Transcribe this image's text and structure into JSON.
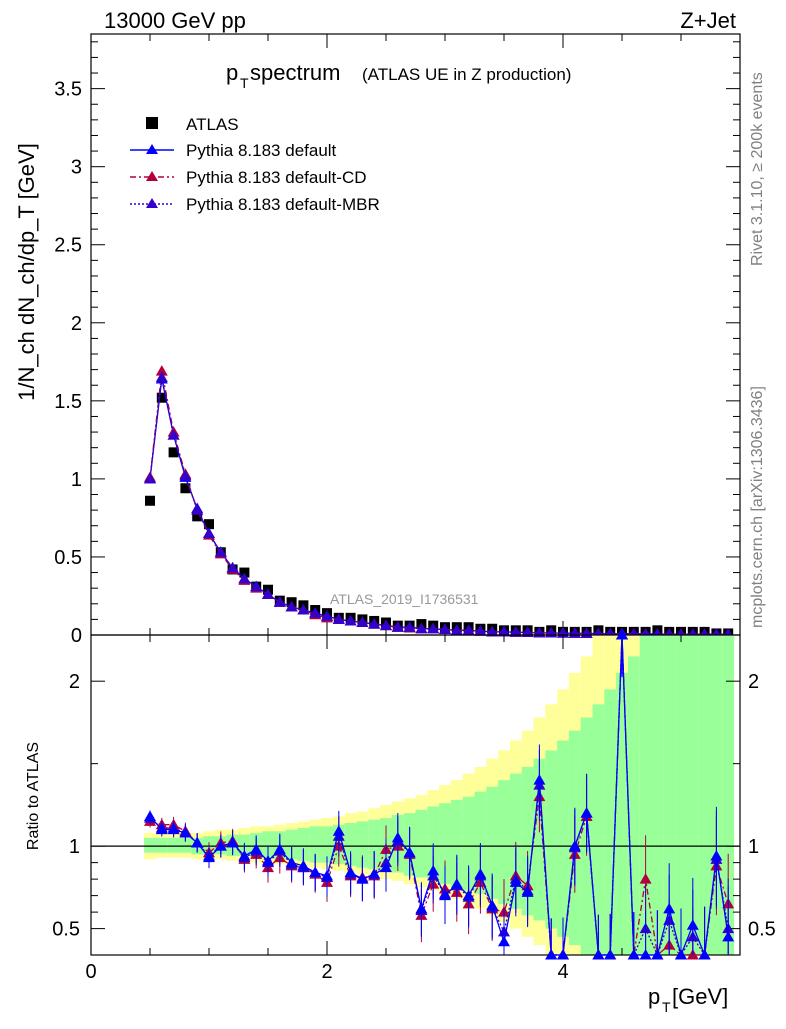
{
  "header": {
    "left": "13000 GeV pp",
    "right": "Z+Jet"
  },
  "side_text": {
    "rivet": "Rivet 3.1.10, ≥ 200k events",
    "mcplots": "mcplots.cern.ch [arXiv:1306.3436]"
  },
  "chart_data": [
    {
      "id": "main",
      "type": "scatter",
      "title_main": "p",
      "title_sub": "T",
      "title_word": " spectrum",
      "title_note": "(ATLAS UE in Z production)",
      "ylabel": "1/N_ch dN_ch/dp_T [GeV]",
      "xlabel": "",
      "xlim": [
        0,
        5.5
      ],
      "ylim": [
        0,
        3.85
      ],
      "yticks": [
        0,
        0.5,
        1,
        1.5,
        2,
        2.5,
        3,
        3.5
      ],
      "ytick_labels": [
        "0",
        "0.5",
        "1",
        "1.5",
        "2",
        "2.5",
        "3",
        "3.5"
      ],
      "watermark": "ATLAS_2019_I1736531",
      "colors": {
        "data": "#000000",
        "default": "#0000ff",
        "cd": "#b3003c",
        "mbr": "#3300cc"
      },
      "legend": [
        "ATLAS",
        "Pythia 8.183 default",
        "Pythia 8.183 default-CD",
        "Pythia 8.183 default-MBR"
      ],
      "x": [
        0.5,
        0.6,
        0.7,
        0.8,
        0.9,
        1.0,
        1.1,
        1.2,
        1.3,
        1.4,
        1.5,
        1.6,
        1.7,
        1.8,
        1.9,
        2.0,
        2.1,
        2.2,
        2.3,
        2.4,
        2.5,
        2.6,
        2.7,
        2.8,
        2.9,
        3.0,
        3.1,
        3.2,
        3.3,
        3.4,
        3.5,
        3.6,
        3.7,
        3.8,
        3.9,
        4.0,
        4.1,
        4.2,
        4.3,
        4.4,
        4.5,
        4.6,
        4.7,
        4.8,
        4.9,
        5.0,
        5.1,
        5.2,
        5.3,
        5.4
      ],
      "series": [
        {
          "name": "ATLAS",
          "marker": "square",
          "values": [
            0.86,
            1.52,
            1.17,
            0.94,
            0.76,
            0.71,
            0.53,
            0.42,
            0.4,
            0.31,
            0.29,
            0.22,
            0.21,
            0.19,
            0.16,
            0.14,
            0.11,
            0.11,
            0.1,
            0.09,
            0.08,
            0.06,
            0.06,
            0.07,
            0.06,
            0.05,
            0.05,
            0.05,
            0.04,
            0.04,
            0.03,
            0.03,
            0.03,
            0.02,
            0.03,
            0.02,
            0.02,
            0.02,
            0.03,
            0.02,
            0.02,
            0.02,
            0.02,
            0.03,
            0.02,
            0.02,
            0.02,
            0.02,
            0.01,
            0.01
          ]
        },
        {
          "name": "Pythia 8.183 default",
          "marker": "triangle",
          "values": [
            1.0,
            1.64,
            1.28,
            1.01,
            0.81,
            0.65,
            0.53,
            0.43,
            0.36,
            0.31,
            0.26,
            0.21,
            0.18,
            0.16,
            0.14,
            0.12,
            0.1,
            0.09,
            0.08,
            0.07,
            0.06,
            0.05,
            0.05,
            0.04,
            0.04,
            0.035,
            0.03,
            0.03,
            0.025,
            0.02,
            0.02,
            0.018,
            0.016,
            0.014,
            0.013,
            0.012,
            0.011,
            0.01,
            0.009,
            0.009,
            0.008,
            0.008,
            0.007,
            0.006,
            0.006,
            0.005,
            0.005,
            0.005,
            0.005,
            0.004
          ]
        },
        {
          "name": "Pythia 8.183 default-CD",
          "marker": "triangle",
          "values": [
            1.01,
            1.69,
            1.3,
            1.03,
            0.8,
            0.64,
            0.52,
            0.42,
            0.35,
            0.3,
            0.26,
            0.21,
            0.18,
            0.16,
            0.13,
            0.11,
            0.1,
            0.09,
            0.08,
            0.07,
            0.06,
            0.05,
            0.045,
            0.04,
            0.04,
            0.035,
            0.03,
            0.03,
            0.025,
            0.02,
            0.02,
            0.018,
            0.016,
            0.014,
            0.013,
            0.012,
            0.011,
            0.01,
            0.009,
            0.009,
            0.008,
            0.008,
            0.007,
            0.006,
            0.006,
            0.005,
            0.005,
            0.005,
            0.005,
            0.004
          ]
        },
        {
          "name": "Pythia 8.183 default-MBR",
          "marker": "triangle",
          "values": [
            1.0,
            1.65,
            1.28,
            1.02,
            0.8,
            0.65,
            0.53,
            0.43,
            0.36,
            0.31,
            0.26,
            0.21,
            0.18,
            0.16,
            0.14,
            0.12,
            0.1,
            0.09,
            0.08,
            0.07,
            0.06,
            0.05,
            0.05,
            0.04,
            0.04,
            0.035,
            0.03,
            0.03,
            0.025,
            0.02,
            0.02,
            0.018,
            0.016,
            0.014,
            0.013,
            0.012,
            0.011,
            0.01,
            0.009,
            0.009,
            0.008,
            0.008,
            0.007,
            0.006,
            0.006,
            0.005,
            0.005,
            0.005,
            0.005,
            0.004
          ]
        }
      ]
    },
    {
      "id": "ratio",
      "type": "scatter",
      "ylabel": "Ratio to ATLAS",
      "xlabel": "p_T [GeV]",
      "xlabel_main": "p",
      "xlabel_sub": "T",
      "xlabel_unit": " [GeV]",
      "xlim": [
        0,
        5.5
      ],
      "ylim": [
        0.34,
        2.28
      ],
      "xticks": [
        0,
        2,
        4
      ],
      "xtick_labels": [
        "0",
        "2",
        "4"
      ],
      "yticks": [
        0.5,
        1,
        2
      ],
      "ytick_labels": [
        "0.5",
        "1",
        "2"
      ],
      "x": [
        0.5,
        0.6,
        0.7,
        0.8,
        0.9,
        1.0,
        1.1,
        1.2,
        1.3,
        1.4,
        1.5,
        1.6,
        1.7,
        1.8,
        1.9,
        2.0,
        2.1,
        2.2,
        2.3,
        2.4,
        2.5,
        2.6,
        2.7,
        2.8,
        2.9,
        3.0,
        3.1,
        3.2,
        3.3,
        3.4,
        3.5,
        3.6,
        3.7,
        3.8,
        3.9,
        4.0,
        4.1,
        4.2,
        4.3,
        4.4,
        4.5,
        4.6,
        4.7,
        4.8,
        4.9,
        5.0,
        5.1,
        5.2,
        5.3,
        5.4
      ],
      "band_stat_sys": [
        [
          0.92,
          1.08
        ],
        [
          0.93,
          1.08
        ],
        [
          0.93,
          1.08
        ],
        [
          0.93,
          1.08
        ],
        [
          0.92,
          1.08
        ],
        [
          0.92,
          1.09
        ],
        [
          0.92,
          1.1
        ],
        [
          0.91,
          1.1
        ],
        [
          0.91,
          1.11
        ],
        [
          0.9,
          1.12
        ],
        [
          0.9,
          1.12
        ],
        [
          0.89,
          1.13
        ],
        [
          0.89,
          1.14
        ],
        [
          0.88,
          1.15
        ],
        [
          0.87,
          1.16
        ],
        [
          0.86,
          1.17
        ],
        [
          0.85,
          1.18
        ],
        [
          0.84,
          1.2
        ],
        [
          0.83,
          1.21
        ],
        [
          0.82,
          1.23
        ],
        [
          0.8,
          1.25
        ],
        [
          0.79,
          1.27
        ],
        [
          0.77,
          1.29
        ],
        [
          0.75,
          1.31
        ],
        [
          0.73,
          1.34
        ],
        [
          0.7,
          1.37
        ],
        [
          0.68,
          1.4
        ],
        [
          0.65,
          1.44
        ],
        [
          0.62,
          1.48
        ],
        [
          0.58,
          1.53
        ],
        [
          0.54,
          1.58
        ],
        [
          0.5,
          1.64
        ],
        [
          0.45,
          1.7
        ],
        [
          0.4,
          1.78
        ],
        [
          0.34,
          1.86
        ],
        [
          0.34,
          1.95
        ],
        [
          0.34,
          2.05
        ],
        [
          0.34,
          2.15
        ],
        [
          0.34,
          2.28
        ],
        [
          0.34,
          2.28
        ],
        [
          0.34,
          2.28
        ],
        [
          0.34,
          2.28
        ],
        [
          0.34,
          2.28
        ],
        [
          0.34,
          2.28
        ],
        [
          0.34,
          2.28
        ],
        [
          0.34,
          2.28
        ],
        [
          0.34,
          2.28
        ],
        [
          0.34,
          2.28
        ],
        [
          0.34,
          2.28
        ],
        [
          0.34,
          2.28
        ]
      ],
      "band_stat": [
        [
          0.96,
          1.05
        ],
        [
          0.96,
          1.05
        ],
        [
          0.96,
          1.05
        ],
        [
          0.96,
          1.05
        ],
        [
          0.95,
          1.05
        ],
        [
          0.95,
          1.06
        ],
        [
          0.95,
          1.06
        ],
        [
          0.94,
          1.07
        ],
        [
          0.94,
          1.07
        ],
        [
          0.93,
          1.08
        ],
        [
          0.93,
          1.09
        ],
        [
          0.92,
          1.09
        ],
        [
          0.92,
          1.1
        ],
        [
          0.91,
          1.11
        ],
        [
          0.9,
          1.12
        ],
        [
          0.9,
          1.12
        ],
        [
          0.89,
          1.13
        ],
        [
          0.88,
          1.14
        ],
        [
          0.87,
          1.15
        ],
        [
          0.86,
          1.16
        ],
        [
          0.85,
          1.17
        ],
        [
          0.84,
          1.19
        ],
        [
          0.82,
          1.2
        ],
        [
          0.81,
          1.22
        ],
        [
          0.79,
          1.24
        ],
        [
          0.77,
          1.26
        ],
        [
          0.75,
          1.28
        ],
        [
          0.73,
          1.3
        ],
        [
          0.71,
          1.33
        ],
        [
          0.68,
          1.36
        ],
        [
          0.65,
          1.4
        ],
        [
          0.62,
          1.44
        ],
        [
          0.58,
          1.48
        ],
        [
          0.55,
          1.53
        ],
        [
          0.5,
          1.58
        ],
        [
          0.45,
          1.64
        ],
        [
          0.4,
          1.7
        ],
        [
          0.34,
          1.78
        ],
        [
          0.34,
          1.86
        ],
        [
          0.34,
          1.95
        ],
        [
          0.34,
          2.05
        ],
        [
          0.34,
          2.15
        ],
        [
          0.34,
          2.28
        ],
        [
          0.34,
          2.28
        ],
        [
          0.34,
          2.28
        ],
        [
          0.34,
          2.28
        ],
        [
          0.34,
          2.28
        ],
        [
          0.34,
          2.28
        ],
        [
          0.34,
          2.28
        ],
        [
          0.34,
          2.28
        ]
      ],
      "series": [
        {
          "name": "Pythia 8.183 default",
          "values": [
            1.18,
            1.1,
            1.1,
            1.08,
            1.02,
            0.93,
            1.0,
            1.02,
            0.94,
            0.98,
            0.91,
            0.98,
            0.9,
            0.88,
            0.84,
            0.82,
            1.09,
            0.84,
            0.8,
            0.83,
            0.87,
            1.05,
            0.96,
            0.62,
            0.85,
            0.7,
            0.77,
            0.7,
            0.83,
            0.64,
            0.42,
            0.78,
            0.72,
            1.4,
            0.34,
            0.34,
            1.0,
            1.2,
            0.34,
            0.34,
            2.28,
            0.34,
            0.34,
            0.34,
            0.62,
            0.34,
            0.52,
            0.34,
            0.94,
            0.45
          ]
        },
        {
          "name": "Pythia 8.183 default-CD",
          "values": [
            1.15,
            1.13,
            1.13,
            1.09,
            1.02,
            0.96,
            1.02,
            1.03,
            0.92,
            0.95,
            0.87,
            0.93,
            0.88,
            0.87,
            0.83,
            0.78,
            1.0,
            0.82,
            0.81,
            0.82,
            0.98,
            1.0,
            0.95,
            0.58,
            0.77,
            0.74,
            0.72,
            0.65,
            0.78,
            0.62,
            0.6,
            0.82,
            0.76,
            1.3,
            0.34,
            0.34,
            0.95,
            1.18,
            0.34,
            0.34,
            2.28,
            0.34,
            0.8,
            0.34,
            0.4,
            0.34,
            0.34,
            0.34,
            0.88,
            0.65
          ]
        },
        {
          "name": "Pythia 8.183 default-MBR",
          "values": [
            1.17,
            1.11,
            1.11,
            1.08,
            1.02,
            0.94,
            1.0,
            1.02,
            0.93,
            0.97,
            0.9,
            0.97,
            0.89,
            0.87,
            0.84,
            0.81,
            1.06,
            0.83,
            0.8,
            0.83,
            0.9,
            1.03,
            0.96,
            0.61,
            0.82,
            0.71,
            0.76,
            0.69,
            0.82,
            0.63,
            0.48,
            0.8,
            0.73,
            1.37,
            0.34,
            0.34,
            0.99,
            1.2,
            0.34,
            0.34,
            2.28,
            0.34,
            0.5,
            0.34,
            0.55,
            0.34,
            0.45,
            0.34,
            0.92,
            0.5
          ]
        }
      ]
    }
  ]
}
